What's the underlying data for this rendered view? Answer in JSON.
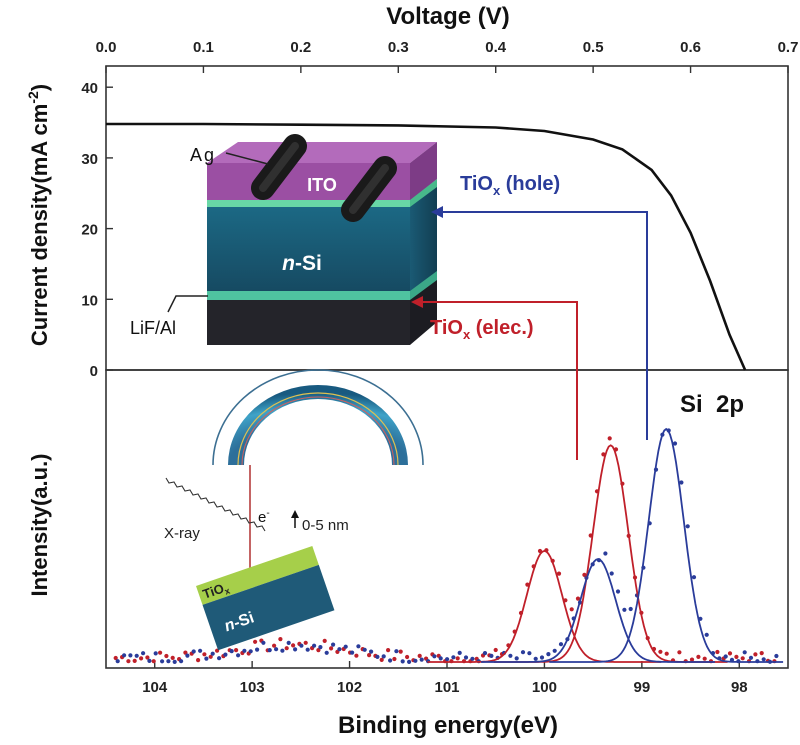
{
  "chart_data": [
    {
      "type": "line",
      "title": "",
      "xlabel": "Voltage (V)",
      "ylabel": "Current density(mA cm",
      "ylabel_sup": "-2",
      "ylabel_close": ")",
      "xlim": [
        0,
        0.7
      ],
      "ylim": [
        0,
        43
      ],
      "xticks": [
        "0.0",
        "0.1",
        "0.2",
        "0.3",
        "0.4",
        "0.5",
        "0.6",
        "0.7"
      ],
      "yticks": [
        "0",
        "10",
        "20",
        "30",
        "40"
      ],
      "series": [
        {
          "x": [
            0.0,
            0.1,
            0.2,
            0.3,
            0.4,
            0.45,
            0.5,
            0.53,
            0.56,
            0.58,
            0.6,
            0.62,
            0.64,
            0.656
          ],
          "y": [
            34.8,
            34.8,
            34.7,
            34.6,
            34.3,
            33.8,
            32.6,
            31.2,
            28.3,
            24.7,
            19.4,
            12.6,
            5.0,
            0.0
          ],
          "color": "#111111"
        }
      ],
      "annotations": {
        "ag": "Ag",
        "ito": "ITO",
        "nsi_italic": "n",
        "nsi_rest": "-Si",
        "lifal": "LiF/Al",
        "tiox_hole_base": "TiO",
        "tiox_hole_sub": "x",
        "tiox_hole_rest": " (hole)",
        "tiox_elec_base": "TiO",
        "tiox_elec_sub": "x",
        "tiox_elec_rest": " (elec.)"
      }
    },
    {
      "type": "scatter",
      "title": "Si  2p",
      "xlabel": "Binding energy(eV)",
      "ylabel": "Intensity(a.u.)",
      "xlim": [
        104.5,
        97.5
      ],
      "xreversed": true,
      "ylim": [
        0,
        1.1
      ],
      "xticks": [
        "104",
        "103",
        "102",
        "101",
        "100",
        "99",
        "98"
      ],
      "series": [
        {
          "name": "",
          "color": "#c0202a",
          "fits": [
            {
              "center": 100.0,
              "height": 0.41,
              "sigma": 0.18
            },
            {
              "center": 99.32,
              "height": 0.8,
              "sigma": 0.18
            }
          ]
        },
        {
          "name": "",
          "color": "#2a3c9a",
          "fits": [
            {
              "center": 99.45,
              "height": 0.38,
              "sigma": 0.18
            },
            {
              "center": 98.75,
              "height": 0.86,
              "sigma": 0.18
            }
          ]
        }
      ],
      "annotations": {
        "electron": "e",
        "electron_sup": "-",
        "xray": "X-ray",
        "depth": "0-5 nm",
        "tiox_base": "TiO",
        "tiox_sub": "x",
        "nsi_italic": "n",
        "nsi_rest": "-Si"
      }
    }
  ],
  "colors": {
    "red": "#c0202a",
    "blue": "#2a3c9a",
    "ito": "#9b4fa3",
    "nsi": "#1f5a78",
    "interlayer": "#6ed9a8",
    "tiox_layer": "#a6cf4a"
  }
}
